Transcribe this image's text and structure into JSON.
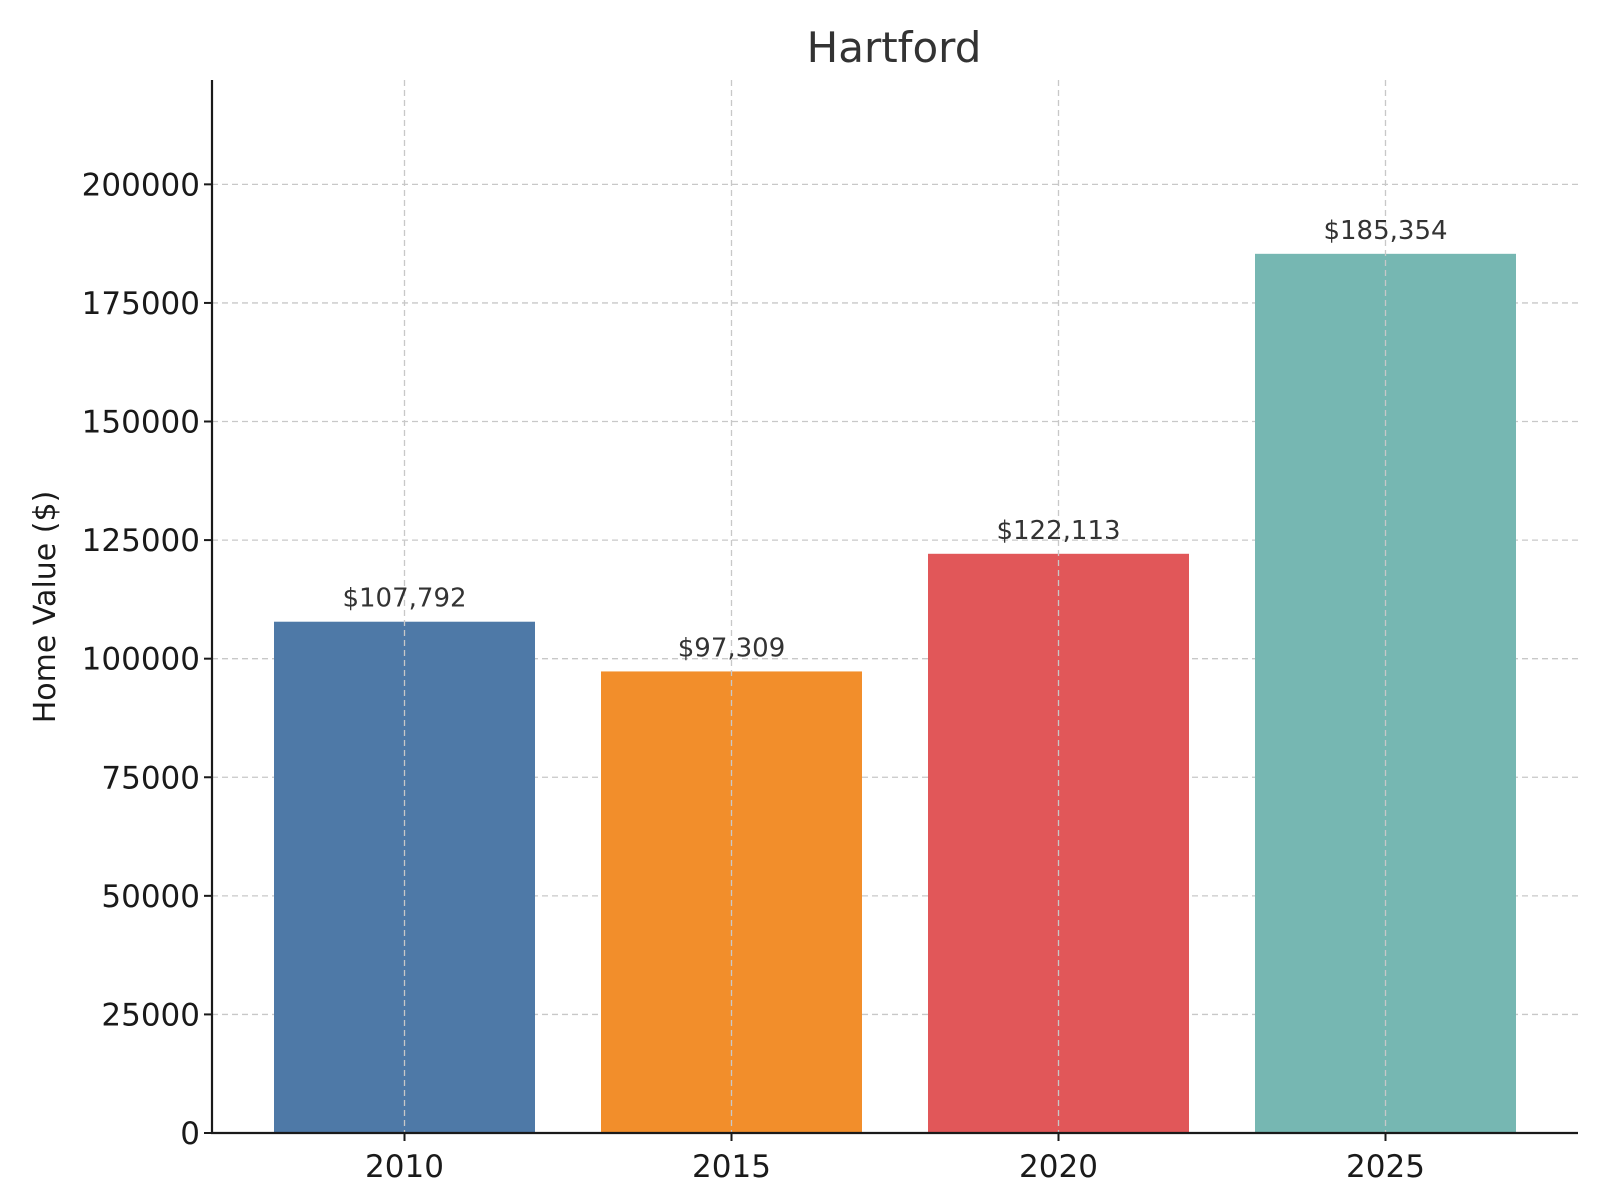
{
  "chart_data": {
    "type": "bar",
    "title": "Hartford",
    "xlabel": "",
    "ylabel": "Home Value ($)",
    "categories": [
      "2010",
      "2015",
      "2020",
      "2025"
    ],
    "values": [
      107792,
      97309,
      122113,
      185354
    ],
    "data_labels": [
      "$107,792",
      "$97,309",
      "$122,113",
      "$185,354"
    ],
    "colors": [
      "#4e79a7",
      "#f28e2b",
      "#e15759",
      "#76b7b2"
    ],
    "ylim": [
      0,
      222000
    ],
    "yticks": [
      0,
      25000,
      50000,
      75000,
      100000,
      125000,
      150000,
      175000,
      200000
    ],
    "ytick_labels": [
      "0",
      "25000",
      "50000",
      "75000",
      "100000",
      "125000",
      "150000",
      "175000",
      "200000"
    ],
    "grid": true
  }
}
